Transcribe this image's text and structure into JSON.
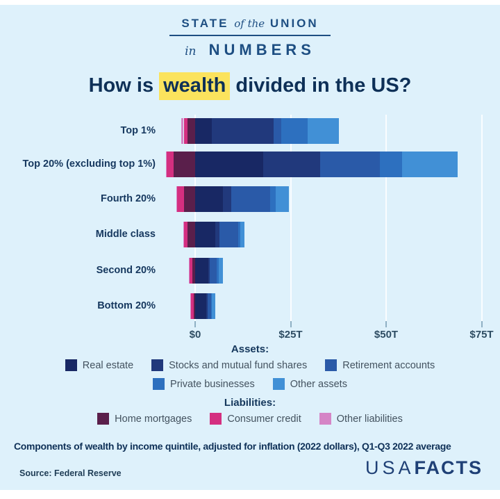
{
  "logo": {
    "line1_left": "STATE",
    "line1_mid": "of the",
    "line1_right": "UNION",
    "line2_left": "in",
    "line2_right": "NUMBERS"
  },
  "title": {
    "pre": "How is ",
    "highlight": "wealth",
    "post": " divided in the US?"
  },
  "chart_data": {
    "type": "bar",
    "orientation": "horizontal",
    "stacked": true,
    "unit": "trillions of 2022 dollars",
    "categories": [
      "Top 1%",
      "Top 20% (excluding top 1%)",
      "Fourth 20%",
      "Middle class",
      "Second 20%",
      "Bottom 20%"
    ],
    "series": [
      {
        "name": "Home mortgages",
        "group": "liability",
        "color": "#5a1f4b",
        "values": [
          2.0,
          5.6,
          2.9,
          2.0,
          0.7,
          0.4
        ]
      },
      {
        "name": "Consumer credit",
        "group": "liability",
        "color": "#d42f80",
        "values": [
          1.0,
          1.8,
          1.8,
          1.0,
          0.9,
          0.8
        ]
      },
      {
        "name": "Other liabilities",
        "group": "liability",
        "color": "#d585c6",
        "values": [
          0.6,
          0.3,
          0.2,
          0.1,
          0.1,
          0.1
        ]
      },
      {
        "name": "Real estate",
        "group": "asset",
        "color": "#182864",
        "values": [
          4.3,
          17.8,
          7.2,
          5.2,
          3.4,
          2.9
        ]
      },
      {
        "name": "Stocks and mutual fund shares",
        "group": "asset",
        "color": "#21397c",
        "values": [
          16.2,
          14.9,
          2.2,
          1.1,
          0.5,
          0.3
        ]
      },
      {
        "name": "Retirement accounts",
        "group": "asset",
        "color": "#2a5aa8",
        "values": [
          2.0,
          15.6,
          10.3,
          4.9,
          1.8,
          0.9
        ]
      },
      {
        "name": "Private businesses",
        "group": "asset",
        "color": "#2d70bf",
        "values": [
          7.0,
          5.9,
          1.4,
          0.7,
          0.4,
          0.3
        ]
      },
      {
        "name": "Other assets",
        "group": "asset",
        "color": "#4190d6",
        "values": [
          8.1,
          14.5,
          3.4,
          1.1,
          1.1,
          0.8
        ]
      }
    ],
    "x_ticks": [
      {
        "value": 0,
        "label": "$0"
      },
      {
        "value": 25,
        "label": "$25T"
      },
      {
        "value": 50,
        "label": "$50T"
      },
      {
        "value": 75,
        "label": "$75T"
      }
    ],
    "xlim": [
      -9,
      80
    ],
    "grid": true,
    "legend_position": "bottom"
  },
  "legend": {
    "assets_header": "Assets:",
    "liabilities_header": "Liabilities:",
    "asset_rows": [
      [
        "Real estate",
        "Stocks and mutual fund shares",
        "Retirement accounts"
      ],
      [
        "Private businesses",
        "Other assets"
      ]
    ],
    "liability_rows": [
      [
        "Home mortgages",
        "Consumer credit",
        "Other liabilities"
      ]
    ]
  },
  "footnote": "Components of wealth by income quintile, adjusted for inflation (2022 dollars), Q1-Q3 2022 average",
  "source": "Source: Federal Reserve",
  "brand": {
    "part1": "USA",
    "part2": "FACTS"
  }
}
